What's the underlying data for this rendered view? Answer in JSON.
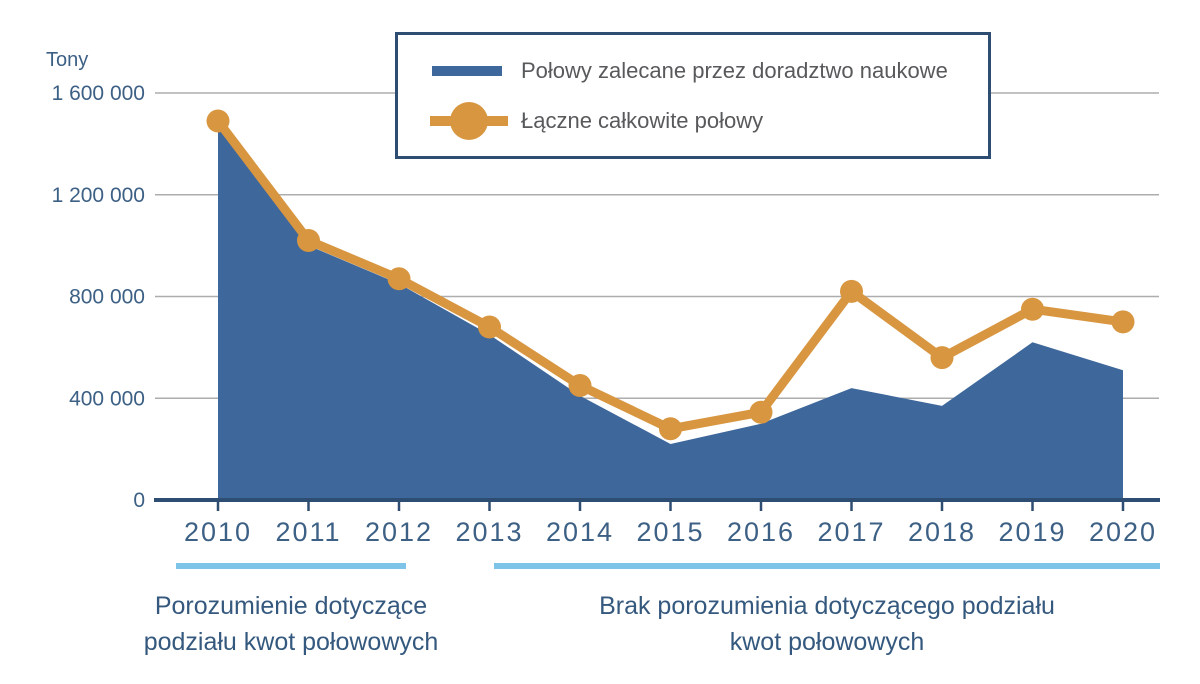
{
  "chart_data": {
    "type": "area",
    "title": "",
    "unit_label": "Tony",
    "categories": [
      "2010",
      "2011",
      "2012",
      "2013",
      "2014",
      "2015",
      "2016",
      "2017",
      "2018",
      "2019",
      "2020"
    ],
    "series": [
      {
        "name": "Połowy zalecane przez doradztwo naukowe",
        "type": "area",
        "color": "#3E679B",
        "values": [
          1480000,
          1000000,
          850000,
          650000,
          410000,
          220000,
          300000,
          440000,
          370000,
          620000,
          510000
        ]
      },
      {
        "name": "Łączne całkowite połowy",
        "type": "line",
        "color": "#D89640",
        "values": [
          1490000,
          1020000,
          870000,
          680000,
          450000,
          280000,
          345000,
          820000,
          560000,
          750000,
          700000
        ]
      }
    ],
    "y_axis": {
      "ticks": [
        0,
        400000,
        800000,
        1200000,
        1600000
      ],
      "tick_labels": [
        "0",
        "400 000",
        "800 000",
        "1 200 000",
        "1 600 000"
      ],
      "range": [
        0,
        1600000
      ],
      "grid": true
    },
    "x_axis": {
      "label": ""
    },
    "legend_position": "top-center",
    "annotations": [
      {
        "lines": [
          "Porozumienie dotyczące",
          "podziału kwot połowowych"
        ],
        "year_span": [
          "2010",
          "2012"
        ]
      },
      {
        "lines": [
          "Brak porozumienia dotyczącego podziału",
          "kwot połowowych"
        ],
        "year_span": [
          "2013",
          "2020"
        ]
      }
    ]
  },
  "colors": {
    "area_blue": "#3E679B",
    "line_orange": "#D89640",
    "axis_navy": "#2E4D72",
    "axis_text_blue": "#3D6085",
    "annotation_text_blue": "#35597E",
    "legend_text_gray": "#58595B",
    "gridline_gray": "#ADADAD",
    "underline_light_blue": "#7EC3E8"
  }
}
